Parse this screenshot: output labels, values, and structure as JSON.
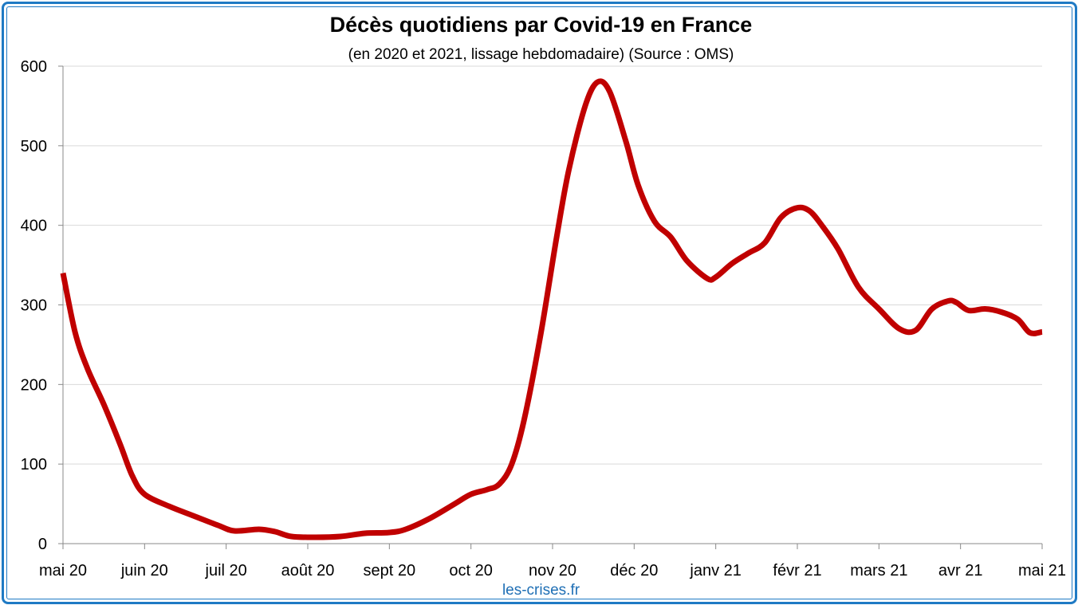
{
  "chart_data": {
    "type": "line",
    "title": "Décès quotidiens par Covid-19 en France",
    "subtitle": "(en 2020 et 2021, lissage hebdomadaire) (Source : OMS)",
    "credit": "les-crises.fr",
    "ylim": [
      0,
      600
    ],
    "yticks": [
      0,
      100,
      200,
      300,
      400,
      500,
      600
    ],
    "yticklabels": [
      "0",
      "100",
      "200",
      "300",
      "400",
      "500",
      "600"
    ],
    "xlim": [
      0,
      12
    ],
    "xticklabels": [
      "mai 20",
      "juin 20",
      "juil 20",
      "août 20",
      "sept 20",
      "oct 20",
      "nov 20",
      "déc 20",
      "janv 21",
      "févr 21",
      "mars 21",
      "avr 21",
      "mai 21"
    ],
    "grid": true,
    "legend": "none",
    "series": [
      {
        "color": "#c00000",
        "points": [
          [
            0.0,
            340
          ],
          [
            0.15,
            265
          ],
          [
            0.3,
            220
          ],
          [
            0.5,
            175
          ],
          [
            0.7,
            125
          ],
          [
            0.85,
            85
          ],
          [
            1.0,
            62
          ],
          [
            1.3,
            47
          ],
          [
            1.6,
            35
          ],
          [
            1.9,
            23
          ],
          [
            2.1,
            16
          ],
          [
            2.4,
            18
          ],
          [
            2.6,
            15
          ],
          [
            2.8,
            9
          ],
          [
            3.1,
            8
          ],
          [
            3.4,
            9
          ],
          [
            3.7,
            13
          ],
          [
            4.0,
            14
          ],
          [
            4.2,
            18
          ],
          [
            4.5,
            32
          ],
          [
            4.8,
            50
          ],
          [
            5.0,
            62
          ],
          [
            5.2,
            68
          ],
          [
            5.35,
            75
          ],
          [
            5.5,
            100
          ],
          [
            5.65,
            155
          ],
          [
            5.85,
            260
          ],
          [
            6.05,
            385
          ],
          [
            6.2,
            470
          ],
          [
            6.4,
            550
          ],
          [
            6.55,
            580
          ],
          [
            6.7,
            568
          ],
          [
            6.9,
            505
          ],
          [
            7.05,
            450
          ],
          [
            7.25,
            405
          ],
          [
            7.45,
            385
          ],
          [
            7.65,
            355
          ],
          [
            7.9,
            333
          ],
          [
            8.0,
            335
          ],
          [
            8.2,
            352
          ],
          [
            8.4,
            365
          ],
          [
            8.6,
            378
          ],
          [
            8.8,
            410
          ],
          [
            9.0,
            422
          ],
          [
            9.15,
            418
          ],
          [
            9.3,
            400
          ],
          [
            9.5,
            370
          ],
          [
            9.75,
            322
          ],
          [
            10.0,
            295
          ],
          [
            10.25,
            270
          ],
          [
            10.45,
            268
          ],
          [
            10.65,
            295
          ],
          [
            10.85,
            305
          ],
          [
            10.95,
            303
          ],
          [
            11.1,
            293
          ],
          [
            11.3,
            295
          ],
          [
            11.5,
            291
          ],
          [
            11.7,
            282
          ],
          [
            11.85,
            265
          ],
          [
            12.0,
            266
          ]
        ]
      }
    ]
  }
}
